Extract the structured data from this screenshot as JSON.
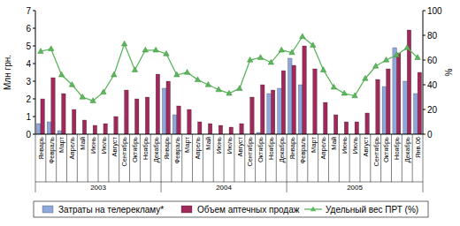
{
  "chart_data": {
    "type": "bar",
    "categories": [
      "Январь",
      "Февраль",
      "Март",
      "Апрель",
      "Май",
      "Июнь",
      "Июль",
      "Август",
      "Сентябрь",
      "Октябрь",
      "Ноябрь",
      "Декабрь",
      "Январь",
      "Февраль",
      "Март",
      "Апрель",
      "Май",
      "Июнь",
      "Июль",
      "Август",
      "Сентябрь",
      "Октябрь",
      "Ноябрь",
      "Декабрь",
      "Январь",
      "Февраль",
      "Март",
      "Апрель",
      "Май",
      "Июнь",
      "Июль",
      "Август",
      "Сентябрь",
      "Октябрь",
      "Ноябрь",
      "Декабрь",
      "Янв.06"
    ],
    "x_groups": [
      {
        "label": "2003",
        "span": 12
      },
      {
        "label": "2004",
        "span": 12
      },
      {
        "label": "2005",
        "span": 13
      }
    ],
    "y_label": "Млн грн.",
    "y2_label": "%",
    "ylim": [
      0,
      7
    ],
    "yticks": [
      0,
      1,
      2,
      3,
      4,
      5,
      6,
      7
    ],
    "y2lim": [
      0,
      100
    ],
    "y2ticks": [
      0,
      20,
      40,
      60,
      80,
      100
    ],
    "legend": "bottom",
    "series": [
      {
        "name": "Затраты на телерекламу*",
        "type": "bar",
        "color": "#8fa8dc",
        "values": [
          0.6,
          0.7,
          0.2,
          0,
          0,
          0,
          0,
          0,
          0,
          0,
          0,
          0,
          2.6,
          1.1,
          0,
          0,
          0,
          0,
          0,
          0,
          0,
          0.1,
          2.3,
          2.6,
          4.3,
          2.8,
          0,
          0,
          0,
          0,
          0,
          0,
          0,
          2.7,
          4.9,
          3.0,
          2.3
        ]
      },
      {
        "name": "Объем аптечных продаж",
        "type": "bar",
        "color": "#a0285a",
        "values": [
          2.0,
          3.2,
          2.3,
          1.4,
          0.8,
          0.5,
          0.6,
          1.0,
          2.5,
          2.0,
          2.1,
          3.4,
          3.0,
          1.6,
          1.4,
          0.7,
          0.6,
          0.5,
          0.4,
          0.6,
          2.1,
          2.8,
          2.5,
          3.6,
          3.9,
          5.0,
          3.7,
          1.8,
          1.1,
          0.7,
          0.7,
          1.2,
          3.1,
          3.7,
          4.6,
          5.9,
          3.5
        ]
      },
      {
        "name": "Удельный вес ПРТ (%)",
        "type": "line",
        "axis": "y2",
        "color": "#5cb85c",
        "marker": "triangle",
        "values": [
          67,
          69,
          48,
          40,
          30,
          27,
          34,
          48,
          73,
          52,
          68,
          68,
          65,
          48,
          50,
          44,
          40,
          36,
          33,
          37,
          60,
          62,
          58,
          68,
          66,
          79,
          72,
          52,
          38,
          33,
          31,
          45,
          55,
          60,
          64,
          70,
          62
        ]
      }
    ]
  }
}
